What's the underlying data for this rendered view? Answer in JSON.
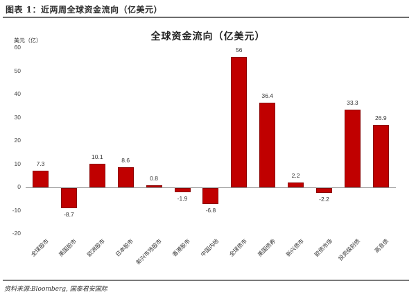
{
  "header": {
    "figure_title": "图表 1：近两周全球资金流向（亿美元）"
  },
  "footer": {
    "source": "资料来源:Bloomberg, 国泰君安国际"
  },
  "colors": {
    "bar": "#c00000",
    "bar_border": "#8b0000",
    "baseline": "#9a9a9a"
  },
  "chart_data": {
    "type": "bar",
    "title": "全球资金流向（亿美元）",
    "xlabel": "",
    "ylabel": "美元（亿）",
    "ylim": [
      -20,
      60
    ],
    "yticks": [
      60,
      50,
      40,
      30,
      20,
      10,
      0,
      -10,
      -20
    ],
    "grid": false,
    "legend": null,
    "categories": [
      "全球股市",
      "美国股市",
      "欧洲股市",
      "日本股市",
      "新兴市场股市",
      "香港股市",
      "中国内地",
      "全球债市",
      "美国债券",
      "新兴债市",
      "欧债市场",
      "投资级别债",
      "高息债"
    ],
    "values": [
      7.3,
      -8.7,
      10.1,
      8.6,
      0.8,
      -1.9,
      -6.8,
      56,
      36.4,
      2.2,
      -2.2,
      33.3,
      26.9
    ],
    "value_labels": [
      "7.3",
      "-8.7",
      "10.1",
      "8.6",
      "0.8",
      "-1.9",
      "-6.8",
      "56",
      "36.4",
      "2.2",
      "-2.2",
      "33.3",
      "26.9"
    ]
  }
}
